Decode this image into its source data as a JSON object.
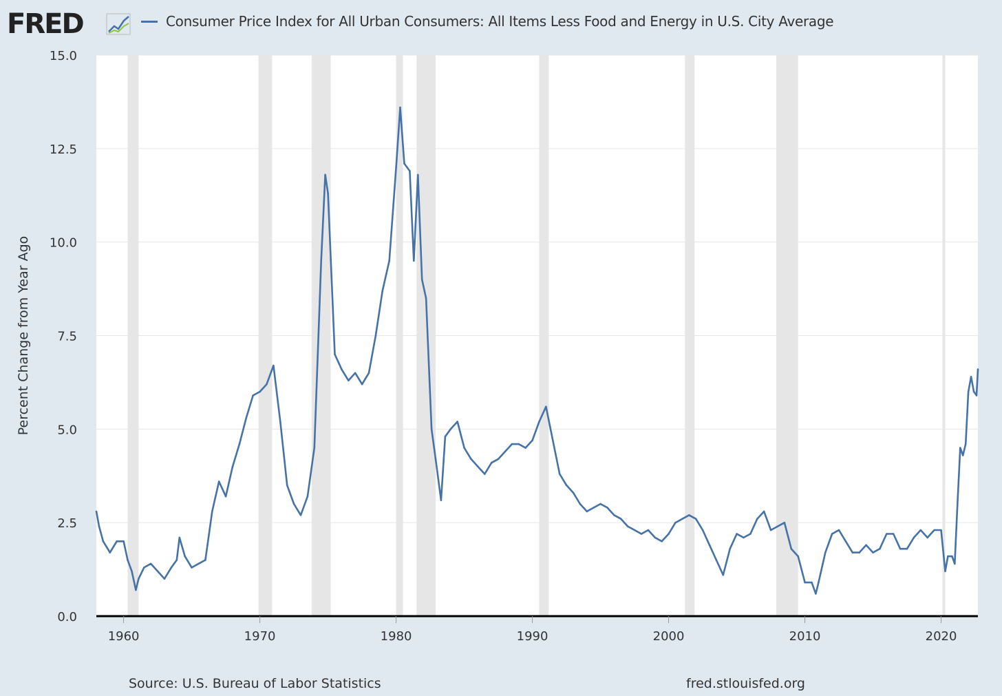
{
  "header": {
    "logo_text": "FRED",
    "series_label": "Consumer Price Index for All Urban Consumers: All Items Less Food and Energy in U.S. City Average"
  },
  "footer": {
    "source": "Source: U.S. Bureau of Labor Statistics",
    "site": "fred.stlouisfed.org"
  },
  "colors": {
    "background": "#e1e9f0",
    "plot_background": "#ffffff",
    "series": "#4572a7",
    "recession": "#e6e6e6",
    "gridline": "#e6e6e6",
    "baseline": "#000000"
  },
  "chart_data": {
    "type": "line",
    "title": "",
    "ylabel": "Percent Change from Year Ago",
    "xlabel": "",
    "xlim": [
      1958.0,
      2022.7
    ],
    "ylim": [
      0,
      15
    ],
    "yticks": [
      "0.0",
      "2.5",
      "5.0",
      "7.5",
      "10.0",
      "12.5",
      "15.0"
    ],
    "xticks": [
      "1960",
      "1970",
      "1980",
      "1990",
      "2000",
      "2010",
      "2020"
    ],
    "grid": "horizontal",
    "recessions": [
      [
        1960.3,
        1961.1
      ],
      [
        1969.9,
        1970.9
      ],
      [
        1973.8,
        1975.2
      ],
      [
        1980.0,
        1980.5
      ],
      [
        1981.5,
        1982.9
      ],
      [
        1990.5,
        1991.2
      ],
      [
        2001.2,
        2001.9
      ],
      [
        2007.9,
        2009.5
      ],
      [
        2020.1,
        2020.3
      ]
    ],
    "series": [
      {
        "name": "Consumer Price Index for All Urban Consumers: All Items Less Food and Energy in U.S. City Average",
        "x": [
          1958.0,
          1958.2,
          1958.5,
          1959.0,
          1959.5,
          1960.0,
          1960.3,
          1960.6,
          1960.9,
          1961.1,
          1961.5,
          1962.0,
          1962.5,
          1963.0,
          1963.5,
          1963.9,
          1964.1,
          1964.5,
          1965.0,
          1965.5,
          1966.0,
          1966.5,
          1967.0,
          1967.5,
          1968.0,
          1968.5,
          1969.0,
          1969.5,
          1970.0,
          1970.5,
          1971.0,
          1971.5,
          1972.0,
          1972.5,
          1973.0,
          1973.5,
          1974.0,
          1974.5,
          1974.8,
          1975.0,
          1975.5,
          1976.0,
          1976.5,
          1977.0,
          1977.5,
          1978.0,
          1978.5,
          1979.0,
          1979.5,
          1980.0,
          1980.3,
          1980.6,
          1981.0,
          1981.3,
          1981.6,
          1981.9,
          1982.2,
          1982.6,
          1982.9,
          1983.3,
          1983.6,
          1984.0,
          1984.5,
          1985.0,
          1985.5,
          1986.0,
          1986.5,
          1987.0,
          1987.5,
          1988.0,
          1988.5,
          1989.0,
          1989.5,
          1990.0,
          1990.5,
          1991.0,
          1991.5,
          1992.0,
          1992.5,
          1993.0,
          1993.5,
          1994.0,
          1994.5,
          1995.0,
          1995.5,
          1996.0,
          1996.5,
          1997.0,
          1997.5,
          1998.0,
          1998.5,
          1999.0,
          1999.5,
          2000.0,
          2000.5,
          2001.0,
          2001.5,
          2002.0,
          2002.5,
          2003.0,
          2003.5,
          2004.0,
          2004.5,
          2005.0,
          2005.5,
          2006.0,
          2006.5,
          2007.0,
          2007.5,
          2008.0,
          2008.5,
          2009.0,
          2009.5,
          2010.0,
          2010.5,
          2010.8,
          2011.0,
          2011.5,
          2012.0,
          2012.5,
          2013.0,
          2013.5,
          2014.0,
          2014.5,
          2015.0,
          2015.5,
          2016.0,
          2016.5,
          2017.0,
          2017.5,
          2018.0,
          2018.5,
          2019.0,
          2019.5,
          2020.0,
          2020.3,
          2020.5,
          2020.8,
          2021.0,
          2021.2,
          2021.4,
          2021.6,
          2021.8,
          2022.0,
          2022.2,
          2022.4,
          2022.6,
          2022.7
        ],
        "values": [
          2.8,
          2.4,
          2.0,
          1.7,
          2.0,
          2.0,
          1.5,
          1.2,
          0.7,
          1.0,
          1.3,
          1.4,
          1.2,
          1.0,
          1.3,
          1.5,
          2.1,
          1.6,
          1.3,
          1.4,
          1.5,
          2.8,
          3.6,
          3.2,
          4.0,
          4.6,
          5.3,
          5.9,
          6.0,
          6.2,
          6.7,
          5.2,
          3.5,
          3.0,
          2.7,
          3.2,
          4.5,
          9.5,
          11.8,
          11.3,
          7.0,
          6.6,
          6.3,
          6.5,
          6.2,
          6.5,
          7.5,
          8.7,
          9.5,
          12.0,
          13.6,
          12.1,
          11.9,
          9.5,
          11.8,
          9.0,
          8.5,
          5.0,
          4.2,
          3.1,
          4.8,
          5.0,
          5.2,
          4.5,
          4.2,
          4.0,
          3.8,
          4.1,
          4.2,
          4.4,
          4.6,
          4.6,
          4.5,
          4.7,
          5.2,
          5.6,
          4.7,
          3.8,
          3.5,
          3.3,
          3.0,
          2.8,
          2.9,
          3.0,
          2.9,
          2.7,
          2.6,
          2.4,
          2.3,
          2.2,
          2.3,
          2.1,
          2.0,
          2.2,
          2.5,
          2.6,
          2.7,
          2.6,
          2.3,
          1.9,
          1.5,
          1.1,
          1.8,
          2.2,
          2.1,
          2.2,
          2.6,
          2.8,
          2.3,
          2.4,
          2.5,
          1.8,
          1.6,
          0.9,
          0.9,
          0.6,
          0.9,
          1.7,
          2.2,
          2.3,
          2.0,
          1.7,
          1.7,
          1.9,
          1.7,
          1.8,
          2.2,
          2.2,
          1.8,
          1.8,
          2.1,
          2.3,
          2.1,
          2.3,
          2.3,
          1.2,
          1.6,
          1.6,
          1.4,
          3.0,
          4.5,
          4.3,
          4.6,
          6.0,
          6.4,
          6.0,
          5.9,
          6.6
        ]
      }
    ]
  }
}
